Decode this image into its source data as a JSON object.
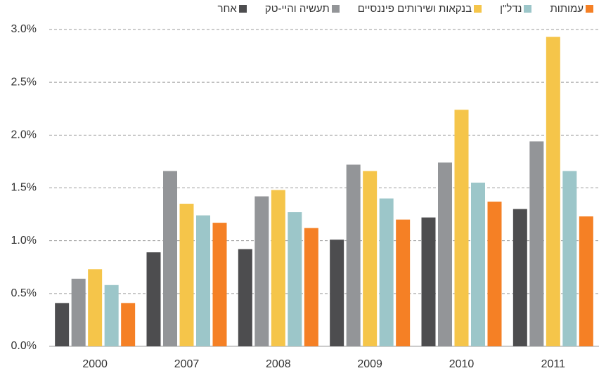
{
  "chart_data": {
    "type": "bar",
    "categories": [
      "2000",
      "2007",
      "2008",
      "2009",
      "2010",
      "2011"
    ],
    "series": [
      {
        "name": "אחר",
        "color": "#4d4d4f",
        "values": [
          0.41,
          0.89,
          0.92,
          1.01,
          1.22,
          1.3
        ]
      },
      {
        "name": "תעשיה והיי-טק",
        "color": "#939598",
        "values": [
          0.64,
          1.66,
          1.42,
          1.72,
          1.74,
          1.94
        ]
      },
      {
        "name": "בנקאות ושירותים פיננסיים",
        "color": "#f5c54a",
        "values": [
          0.73,
          1.35,
          1.48,
          1.66,
          2.24,
          2.93
        ]
      },
      {
        "name": "נדל\"ן",
        "color": "#9cc6c9",
        "values": [
          0.58,
          1.24,
          1.27,
          1.4,
          1.55,
          1.66
        ]
      },
      {
        "name": "עמותות",
        "color": "#f58025",
        "values": [
          0.41,
          1.17,
          1.12,
          1.2,
          1.37,
          1.23
        ]
      }
    ],
    "ylim": [
      0,
      3
    ],
    "yticks": [
      {
        "value": 0,
        "label": "0.0%"
      },
      {
        "value": 0.5,
        "label": "0.5%"
      },
      {
        "value": 1,
        "label": "1.0%"
      },
      {
        "value": 1.5,
        "label": "1.5%"
      },
      {
        "value": 2,
        "label": "2.0%"
      },
      {
        "value": 2.5,
        "label": "2.5%"
      },
      {
        "value": 3,
        "label": "3.0%"
      }
    ],
    "grid": true,
    "legend": "top"
  }
}
